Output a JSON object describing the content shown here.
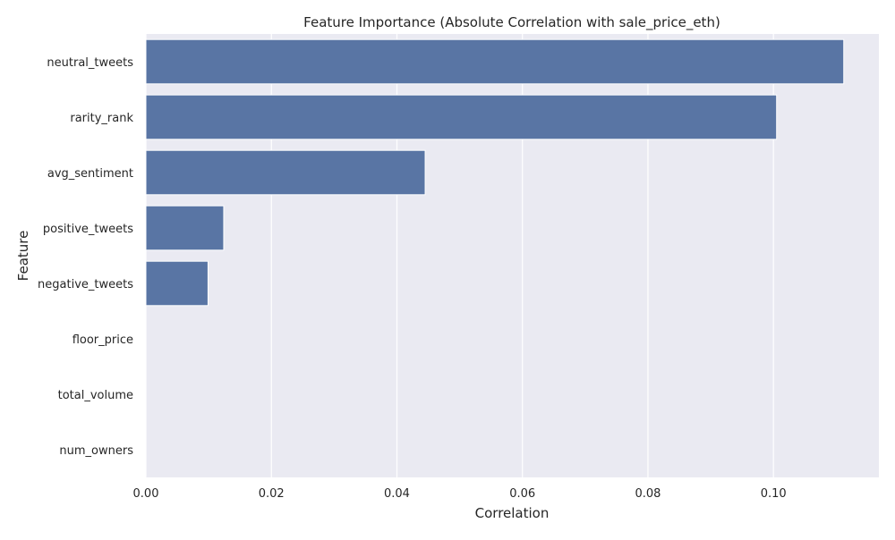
{
  "chart_data": {
    "type": "bar",
    "orientation": "horizontal",
    "title": "Feature Importance (Absolute Correlation with sale_price_eth)",
    "xlabel": "Correlation",
    "ylabel": "Feature",
    "categories": [
      "neutral_tweets",
      "rarity_rank",
      "avg_sentiment",
      "positive_tweets",
      "negative_tweets",
      "floor_price",
      "total_volume",
      "num_owners"
    ],
    "values": [
      0.1112,
      0.1005,
      0.0445,
      0.0124,
      0.0099,
      0,
      0,
      0
    ],
    "xlim": [
      0,
      0.1168
    ],
    "xticks": [
      0.0,
      0.02,
      0.04,
      0.06,
      0.08,
      0.1
    ],
    "xtick_labels": [
      "0.00",
      "0.02",
      "0.04",
      "0.06",
      "0.08",
      "0.10"
    ],
    "grid": true,
    "colors": {
      "bar": "#5975a4",
      "bar_edge": "#ffffff",
      "plot_bg": "#eaeaf2",
      "grid": "#ffffff",
      "text": "#262626"
    }
  }
}
